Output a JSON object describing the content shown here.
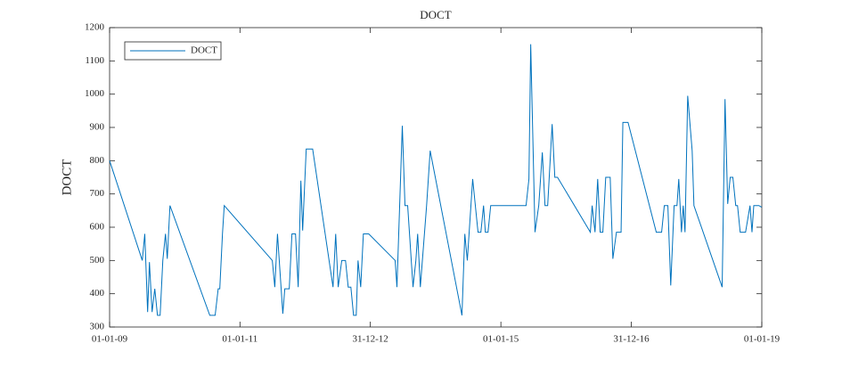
{
  "chart_data": {
    "type": "line",
    "title": "DOCT",
    "ylabel": "DOCT",
    "x": [
      "01-01-09",
      "03-07-09",
      "17-07-09",
      "02-08-09",
      "12-08-09",
      "27-08-09",
      "11-09-09",
      "26-09-09",
      "11-10-09",
      "26-10-09",
      "10-11-09",
      "20-11-09",
      "05-12-09",
      "16-07-10",
      "15-08-10",
      "01-09-10",
      "10-09-10",
      "25-09-10",
      "05-10-10",
      "01-07-11",
      "15-07-11",
      "30-07-11",
      "29-08-11",
      "09-09-11",
      "04-10-11",
      "19-10-11",
      "08-11-11",
      "23-11-11",
      "08-12-11",
      "18-12-11",
      "07-01-12",
      "12-02-12",
      "05-06-12",
      "20-06-12",
      "04-07-12",
      "24-07-12",
      "14-08-12",
      "29-08-12",
      "13-09-12",
      "28-09-12",
      "13-10-12",
      "23-10-12",
      "07-11-12",
      "22-11-12",
      "22-12-12",
      "19-05-13",
      "29-05-13",
      "28-06-13",
      "13-07-13",
      "28-07-13",
      "27-08-13",
      "12-09-13",
      "22-09-13",
      "07-10-13",
      "11-11-13",
      "01-12-13",
      "28-05-14",
      "13-06-14",
      "27-06-14",
      "27-07-14",
      "26-08-14",
      "11-09-14",
      "26-09-14",
      "06-10-14",
      "21-10-14",
      "05-11-14",
      "22-05-15",
      "07-06-15",
      "17-06-15",
      "11-07-15",
      "01-08-15",
      "21-08-15",
      "05-09-15",
      "20-09-15",
      "15-10-15",
      "30-10-15",
      "14-11-15",
      "16-05-16",
      "26-05-16",
      "11-06-16",
      "26-06-16",
      "10-07-16",
      "25-07-16",
      "10-08-16",
      "04-09-16",
      "19-09-16",
      "09-10-16",
      "04-11-16",
      "14-11-16",
      "13-12-16",
      "20-05-17",
      "19-06-17",
      "04-07-17",
      "24-07-17",
      "09-08-17",
      "28-08-17",
      "13-09-17",
      "23-09-17",
      "08-10-17",
      "18-10-17",
      "28-10-17",
      "12-11-17",
      "07-12-17",
      "17-12-17",
      "24-05-18",
      "09-06-18",
      "24-06-18",
      "08-07-18",
      "23-07-18",
      "08-08-18",
      "18-08-18",
      "02-09-18",
      "02-10-18",
      "27-10-18",
      "07-11-18",
      "17-11-18",
      "16-12-18",
      "31-12-18"
    ],
    "series": [
      {
        "name": "DOCT",
        "color": "#0072bd",
        "values": [
          800,
          500,
          580,
          345,
          495,
          345,
          415,
          335,
          335,
          500,
          580,
          505,
          665,
          335,
          335,
          415,
          415,
          580,
          665,
          500,
          420,
          580,
          340,
          415,
          415,
          580,
          580,
          420,
          740,
          590,
          835,
          835,
          420,
          580,
          420,
          500,
          500,
          420,
          420,
          335,
          335,
          500,
          420,
          580,
          580,
          500,
          420,
          905,
          665,
          665,
          420,
          500,
          580,
          420,
          665,
          830,
          335,
          580,
          500,
          745,
          585,
          585,
          665,
          585,
          585,
          665,
          665,
          745,
          1150,
          585,
          665,
          825,
          665,
          665,
          910,
          750,
          750,
          585,
          665,
          585,
          745,
          585,
          585,
          750,
          750,
          505,
          585,
          585,
          915,
          915,
          585,
          585,
          665,
          665,
          425,
          665,
          665,
          745,
          585,
          665,
          585,
          995,
          830,
          665,
          420,
          985,
          670,
          750,
          750,
          665,
          665,
          585,
          585,
          665,
          585,
          665,
          665,
          660
        ]
      }
    ],
    "xlim": [
      "01-01-09",
      "01-01-19"
    ],
    "ylim": [
      300,
      1200
    ],
    "xticks": [
      "01-01-09",
      "01-01-11",
      "31-12-12",
      "01-01-15",
      "31-12-16",
      "01-01-19"
    ],
    "yticks": [
      300,
      400,
      500,
      600,
      700,
      800,
      900,
      1000,
      1100,
      1200
    ],
    "legend": "upper left"
  }
}
